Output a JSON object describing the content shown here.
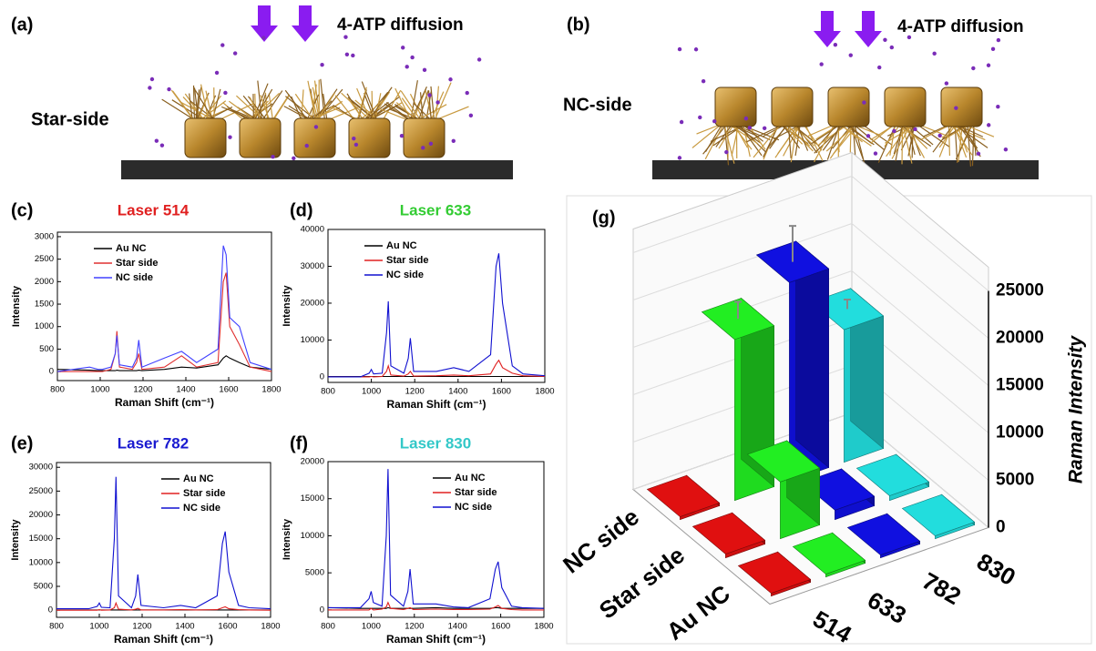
{
  "schematics": {
    "a": {
      "label": "(a)",
      "arrow_text": "4-ATP diffusion",
      "side": "Star-side"
    },
    "b": {
      "label": "(b)",
      "arrow_text": "4-ATP diffusion",
      "side": "NC-side"
    }
  },
  "chart_data": [
    {
      "type": "line",
      "label": "(c)",
      "title": "Laser 514",
      "title_color": "#e02020",
      "x_label": "Raman Shift (cm⁻¹)",
      "y_label": "Intensity",
      "legend": "upper left",
      "x": [
        800,
        950,
        990,
        1000,
        1010,
        1050,
        1070,
        1078,
        1090,
        1150,
        1170,
        1180,
        1195,
        1300,
        1380,
        1450,
        1550,
        1575,
        1588,
        1605,
        1650,
        1700,
        1800
      ],
      "xlim": [
        800,
        1800
      ],
      "xticks": [
        800,
        1000,
        1200,
        1400,
        1600,
        1800
      ],
      "ylim": [
        -200,
        3100
      ],
      "yticks": [
        0,
        500,
        1000,
        1500,
        2000,
        2500,
        3000
      ],
      "series": [
        {
          "name": "Au NC",
          "color": "#000000",
          "values": [
            50,
            30,
            20,
            20,
            20,
            20,
            20,
            30,
            20,
            20,
            20,
            30,
            20,
            50,
            100,
            80,
            150,
            300,
            350,
            300,
            200,
            100,
            50
          ]
        },
        {
          "name": "Star side",
          "color": "#e03030",
          "values": [
            0,
            0,
            0,
            0,
            0,
            50,
            400,
            900,
            100,
            50,
            200,
            400,
            50,
            100,
            350,
            100,
            200,
            2000,
            2200,
            1000,
            600,
            100,
            0
          ]
        },
        {
          "name": "NC side",
          "color": "#4040ff",
          "values": [
            0,
            100,
            50,
            50,
            50,
            100,
            400,
            800,
            150,
            100,
            300,
            700,
            100,
            300,
            450,
            200,
            500,
            2800,
            2600,
            1200,
            1000,
            200,
            50
          ]
        }
      ]
    },
    {
      "type": "line",
      "label": "(d)",
      "title": "Laser 633",
      "title_color": "#33cc33",
      "x_label": "Raman Shift (cm⁻¹)",
      "y_label": "Intensity",
      "legend": "upper left",
      "x": [
        800,
        950,
        990,
        1000,
        1010,
        1050,
        1070,
        1078,
        1090,
        1150,
        1170,
        1180,
        1195,
        1300,
        1380,
        1450,
        1550,
        1575,
        1588,
        1605,
        1650,
        1700,
        1800
      ],
      "xlim": [
        800,
        1800
      ],
      "xticks": [
        800,
        1000,
        1200,
        1400,
        1600,
        1800
      ],
      "ylim": [
        -1500,
        40000
      ],
      "yticks": [
        0,
        10000,
        20000,
        30000,
        40000
      ],
      "series": [
        {
          "name": "Au NC",
          "color": "#000000",
          "values": [
            100,
            100,
            100,
            100,
            100,
            100,
            100,
            100,
            100,
            100,
            100,
            100,
            100,
            100,
            100,
            100,
            100,
            100,
            100,
            100,
            100,
            100,
            100
          ]
        },
        {
          "name": "Star side",
          "color": "#e02020",
          "values": [
            0,
            0,
            0,
            100,
            0,
            100,
            1500,
            3000,
            500,
            200,
            800,
            1500,
            200,
            300,
            500,
            300,
            800,
            3500,
            4500,
            2500,
            1000,
            300,
            100
          ]
        },
        {
          "name": "NC side",
          "color": "#1010d0",
          "values": [
            0,
            0,
            1000,
            2000,
            800,
            1000,
            12000,
            20500,
            3000,
            1000,
            5000,
            10500,
            1500,
            1500,
            2500,
            1500,
            6000,
            30000,
            33500,
            20000,
            3000,
            800,
            300
          ]
        }
      ]
    },
    {
      "type": "line",
      "label": "(e)",
      "title": "Laser 782",
      "title_color": "#1a1ad0",
      "x_label": "Raman Shift (cm⁻¹)",
      "y_label": "Intensity",
      "legend": "upper right",
      "x": [
        800,
        950,
        990,
        1000,
        1010,
        1050,
        1070,
        1078,
        1090,
        1150,
        1170,
        1180,
        1195,
        1300,
        1380,
        1450,
        1550,
        1575,
        1588,
        1605,
        1650,
        1700,
        1800
      ],
      "xlim": [
        800,
        1800
      ],
      "xticks": [
        800,
        1000,
        1200,
        1400,
        1600,
        1800
      ],
      "ylim": [
        -1500,
        31000
      ],
      "yticks": [
        0,
        5000,
        10000,
        15000,
        20000,
        25000,
        30000
      ],
      "series": [
        {
          "name": "Au NC",
          "color": "#000000",
          "values": [
            50,
            50,
            50,
            50,
            50,
            50,
            50,
            50,
            50,
            50,
            50,
            50,
            50,
            50,
            50,
            50,
            50,
            50,
            50,
            50,
            50,
            50,
            50
          ]
        },
        {
          "name": "Star side",
          "color": "#e02020",
          "values": [
            0,
            0,
            0,
            100,
            0,
            50,
            500,
            1500,
            200,
            50,
            200,
            400,
            50,
            50,
            100,
            50,
            100,
            500,
            700,
            300,
            100,
            50,
            0
          ]
        },
        {
          "name": "NC side",
          "color": "#1010d0",
          "values": [
            300,
            300,
            800,
            1500,
            600,
            500,
            15000,
            28000,
            3000,
            500,
            3000,
            7500,
            1000,
            500,
            1000,
            500,
            3000,
            14000,
            16500,
            8000,
            1000,
            500,
            300
          ]
        }
      ]
    },
    {
      "type": "line",
      "label": "(f)",
      "title": "Laser 830",
      "title_color": "#33c8c8",
      "x_label": "Raman Shift (cm⁻¹)",
      "y_label": "Intensity",
      "legend": "upper right",
      "x": [
        800,
        950,
        990,
        1000,
        1010,
        1050,
        1070,
        1078,
        1090,
        1150,
        1170,
        1180,
        1195,
        1300,
        1380,
        1450,
        1550,
        1575,
        1588,
        1605,
        1650,
        1700,
        1800
      ],
      "xlim": [
        800,
        1800
      ],
      "xticks": [
        800,
        1000,
        1200,
        1400,
        1600,
        1800
      ],
      "ylim": [
        -1000,
        20000
      ],
      "yticks": [
        0,
        5000,
        10000,
        15000,
        20000
      ],
      "series": [
        {
          "name": "Au NC",
          "color": "#000000",
          "values": [
            300,
            200,
            200,
            200,
            200,
            200,
            200,
            300,
            200,
            200,
            200,
            200,
            200,
            300,
            200,
            200,
            200,
            300,
            300,
            200,
            200,
            200,
            200
          ]
        },
        {
          "name": "Star side",
          "color": "#e02020",
          "values": [
            0,
            0,
            0,
            200,
            0,
            100,
            400,
            1000,
            200,
            50,
            200,
            300,
            50,
            100,
            50,
            50,
            100,
            400,
            600,
            200,
            50,
            0,
            0
          ]
        },
        {
          "name": "NC side",
          "color": "#1010d0",
          "values": [
            300,
            300,
            1500,
            2500,
            1000,
            500,
            10000,
            19000,
            2000,
            500,
            2500,
            5500,
            800,
            800,
            400,
            300,
            1500,
            5500,
            6500,
            3000,
            500,
            300,
            200
          ]
        }
      ]
    },
    {
      "type": "bar3d",
      "label": "(g)",
      "z_label": "Raman Intensity",
      "categories": [
        "514",
        "633",
        "782",
        "830"
      ],
      "colors": [
        "#e01010",
        "#22ee22",
        "#1010e0",
        "#22dddd"
      ],
      "zlim": [
        0,
        25000
      ],
      "zticks": [
        0,
        5000,
        10000,
        15000,
        20000,
        25000
      ],
      "series": [
        {
          "name": "Au NC",
          "values": [
            300,
            300,
            300,
            300
          ]
        },
        {
          "name": "Star side",
          "values": [
            400,
            6000,
            1000,
            500
          ]
        },
        {
          "name": "NC side",
          "values": [
            300,
            17000,
            21000,
            14000
          ],
          "errors": [
            null,
            1800,
            3800,
            1000
          ]
        }
      ]
    }
  ]
}
